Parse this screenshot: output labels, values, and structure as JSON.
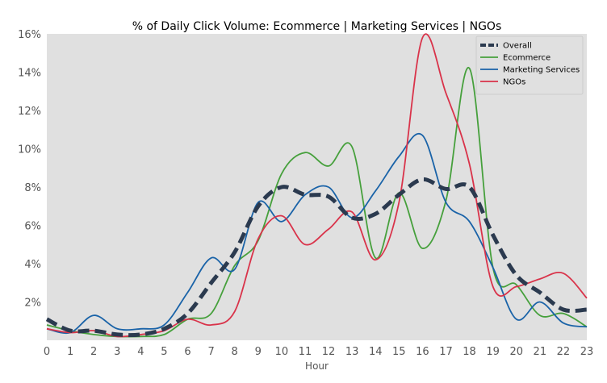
{
  "chart_data": {
    "type": "line",
    "title": "% of Daily Click Volume: Ecommerce | Marketing Services | NGOs",
    "xlabel": "Hour",
    "ylabel": "",
    "x": [
      0,
      1,
      2,
      3,
      4,
      5,
      6,
      7,
      8,
      9,
      10,
      11,
      12,
      13,
      14,
      15,
      16,
      17,
      18,
      19,
      20,
      21,
      22,
      23
    ],
    "x_tick_labels": [
      "0",
      "1",
      "2",
      "3",
      "4",
      "5",
      "6",
      "7",
      "8",
      "9",
      "10",
      "11",
      "12",
      "13",
      "14",
      "15",
      "16",
      "17",
      "18",
      "19",
      "20",
      "21",
      "22",
      "23"
    ],
    "xlim": [
      0,
      23
    ],
    "ylim": [
      0,
      16
    ],
    "y_ticks": [
      2,
      4,
      6,
      8,
      10,
      12,
      14,
      16
    ],
    "y_tick_labels": [
      "2%",
      "4%",
      "6%",
      "8%",
      "10%",
      "12%",
      "14%",
      "16%"
    ],
    "grid": false,
    "legend_position": "top-right",
    "series": [
      {
        "name": "Overall",
        "color": "#2b3a4f",
        "dashed": true,
        "values": [
          1.1,
          0.5,
          0.5,
          0.3,
          0.3,
          0.6,
          1.4,
          3.0,
          4.6,
          7.0,
          8.0,
          7.6,
          7.5,
          6.4,
          6.6,
          7.6,
          8.4,
          7.9,
          8.0,
          5.5,
          3.4,
          2.5,
          1.6,
          1.6
        ]
      },
      {
        "name": "Ecommerce",
        "color": "#46a03c",
        "dashed": false,
        "values": [
          0.8,
          0.5,
          0.3,
          0.2,
          0.2,
          0.3,
          1.1,
          1.4,
          3.9,
          5.2,
          8.7,
          9.8,
          9.1,
          10.1,
          4.3,
          7.7,
          4.8,
          7.3,
          14.2,
          3.8,
          2.9,
          1.3,
          1.4,
          0.7
        ]
      },
      {
        "name": "Marketing Services",
        "color": "#1a63a8",
        "dashed": false,
        "values": [
          0.6,
          0.4,
          1.3,
          0.6,
          0.6,
          0.8,
          2.5,
          4.3,
          3.7,
          7.2,
          6.2,
          7.6,
          8.0,
          6.4,
          7.8,
          9.6,
          10.7,
          7.2,
          6.2,
          3.8,
          1.1,
          2.0,
          0.9,
          0.7
        ]
      },
      {
        "name": "NGOs",
        "color": "#d9334a",
        "dashed": false,
        "values": [
          0.6,
          0.4,
          0.5,
          0.2,
          0.3,
          0.5,
          1.1,
          0.8,
          1.5,
          5.3,
          6.5,
          5.0,
          5.8,
          6.7,
          4.2,
          7.2,
          15.8,
          12.9,
          9.2,
          2.8,
          2.8,
          3.2,
          3.5,
          2.2
        ]
      }
    ]
  }
}
